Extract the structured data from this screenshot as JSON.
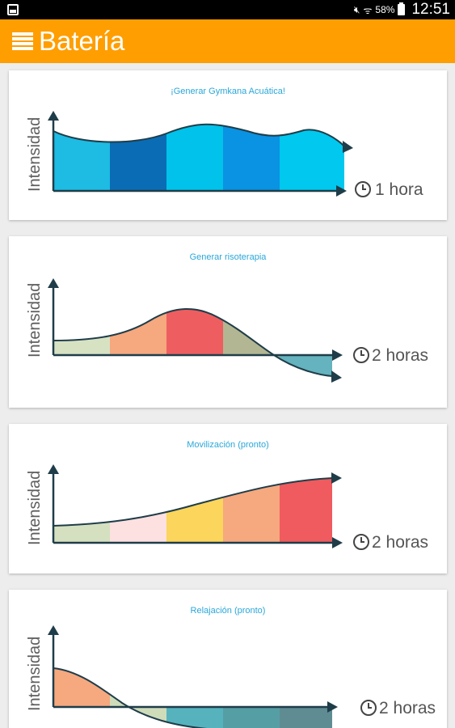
{
  "status_bar": {
    "battery_percent": "58%",
    "time": "12:51"
  },
  "app_bar": {
    "title": "Batería",
    "menu_icon": "menu-icon"
  },
  "colors": {
    "app_bar": "#ff9e00",
    "card_title": "#2aa7d8",
    "axis": "#1f3d49"
  },
  "cards": [
    {
      "title": "¡Generar Gymkana Acuática!",
      "axis_label": "Intensidad",
      "duration": "1 hora",
      "segment_colors": [
        "#1ebbe3",
        "#0a6cb4",
        "#00c2ea",
        "#0a92e3",
        "#00c8ee"
      ],
      "clock_icon": "clock-icon"
    },
    {
      "title": "Generar risoterapia",
      "axis_label": "Intensidad",
      "duration": "2 horas",
      "segment_colors": [
        "#d7e2c3",
        "#f6a87f",
        "#ee5e60",
        "#b3b692",
        "#64b3be"
      ],
      "clock_icon": "clock-icon"
    },
    {
      "title": "Movilización (pronto)",
      "axis_label": "Intensidad",
      "duration": "2 horas",
      "segment_colors": [
        "#d5e0c0",
        "#fde0e0",
        "#fcd55c",
        "#f6a87f",
        "#ef5b5e"
      ],
      "clock_icon": "clock-icon"
    },
    {
      "title": "Relajación (pronto)",
      "axis_label": "Intensidad",
      "duration": "2 horas",
      "segment_colors": [
        "#f6a87f",
        "#cfdcba",
        "#56b3bd",
        "#559ea4",
        "#5e8c92"
      ],
      "clock_icon": "clock-icon"
    }
  ]
}
